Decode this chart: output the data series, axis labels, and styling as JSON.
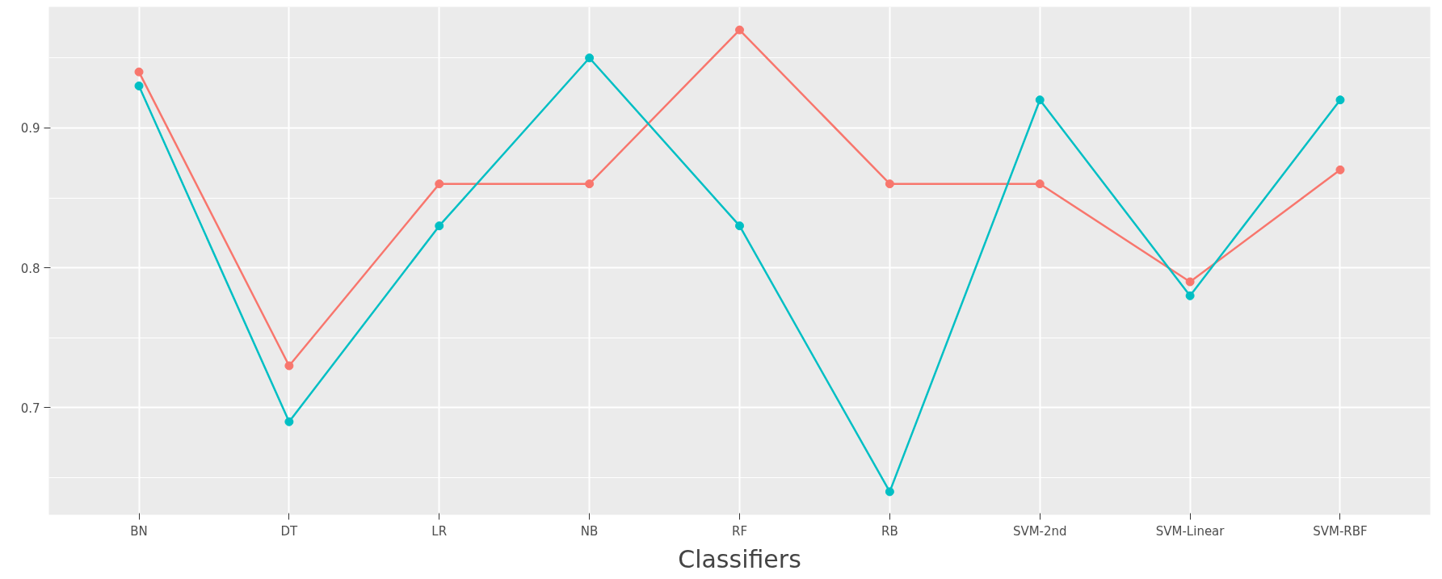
{
  "chart_data": {
    "type": "line",
    "xlabel": "Classifiers",
    "categories": [
      "BN",
      "DT",
      "LR",
      "NB",
      "RF",
      "RB",
      "SVM-2nd",
      "SVM-Linear",
      "SVM-RBF"
    ],
    "series": [
      {
        "color": "#f8766d",
        "values": [
          0.94,
          0.73,
          0.86,
          0.86,
          0.97,
          0.86,
          0.86,
          0.79,
          0.87
        ]
      },
      {
        "color": "#00bfc4",
        "values": [
          0.93,
          0.69,
          0.83,
          0.95,
          0.83,
          0.64,
          0.92,
          0.78,
          0.92
        ]
      }
    ],
    "ylim": [
      0.6235,
      0.9865
    ],
    "yticks": [
      0.7,
      0.8,
      0.9
    ],
    "grid": true,
    "marker": "circle",
    "line_style": "solid"
  }
}
